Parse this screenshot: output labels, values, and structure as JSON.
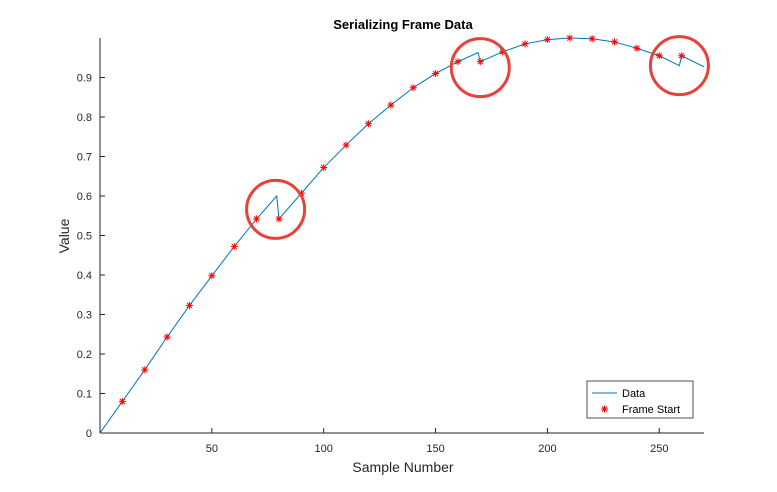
{
  "chart_data": {
    "type": "line",
    "title": "Serializing Frame Data",
    "xlabel": "Sample Number",
    "ylabel": "Value",
    "xlim": [
      0,
      270
    ],
    "ylim": [
      0,
      1.0
    ],
    "xticks": [
      50,
      100,
      150,
      200,
      250
    ],
    "yticks": [
      0,
      0.1,
      0.2,
      0.3,
      0.4,
      0.5,
      0.6,
      0.7,
      0.8,
      0.9
    ],
    "grid": false,
    "legend_location": "bottom-right",
    "series": [
      {
        "name": "Data",
        "color": "#0072BD",
        "marker": "none",
        "x": [
          0,
          10,
          20,
          30,
          40,
          50,
          60,
          70,
          79,
          80,
          90,
          100,
          110,
          120,
          130,
          140,
          150,
          160,
          169,
          170,
          180,
          190,
          200,
          210,
          220,
          230,
          240,
          250,
          259,
          260,
          270
        ],
        "y": [
          0,
          0.08,
          0.16,
          0.243,
          0.323,
          0.398,
          0.472,
          0.542,
          0.6,
          0.542,
          0.607,
          0.672,
          0.729,
          0.783,
          0.83,
          0.874,
          0.91,
          0.94,
          0.963,
          0.94,
          0.965,
          0.985,
          0.996,
          1.0,
          0.998,
          0.99,
          0.974,
          0.955,
          0.93,
          0.955,
          0.927
        ]
      },
      {
        "name": "Frame Start",
        "color": "#FF0000",
        "marker": "*",
        "line": "none",
        "x": [
          10,
          20,
          30,
          40,
          50,
          60,
          70,
          80,
          90,
          100,
          110,
          120,
          130,
          140,
          150,
          160,
          170,
          180,
          190,
          200,
          210,
          220,
          230,
          240,
          250,
          260
        ],
        "y": [
          0.08,
          0.16,
          0.243,
          0.323,
          0.398,
          0.472,
          0.542,
          0.542,
          0.607,
          0.672,
          0.729,
          0.783,
          0.83,
          0.874,
          0.91,
          0.94,
          0.94,
          0.965,
          0.985,
          0.996,
          1.0,
          0.998,
          0.99,
          0.974,
          0.955,
          0.955
        ]
      }
    ],
    "annotations": [
      {
        "shape": "circle",
        "color": "#E8413A",
        "x": 78.5,
        "y": 0.566
      },
      {
        "shape": "circle",
        "color": "#E8413A",
        "x": 170,
        "y": 0.925
      },
      {
        "shape": "circle",
        "color": "#E8413A",
        "x": 259,
        "y": 0.93
      }
    ]
  }
}
